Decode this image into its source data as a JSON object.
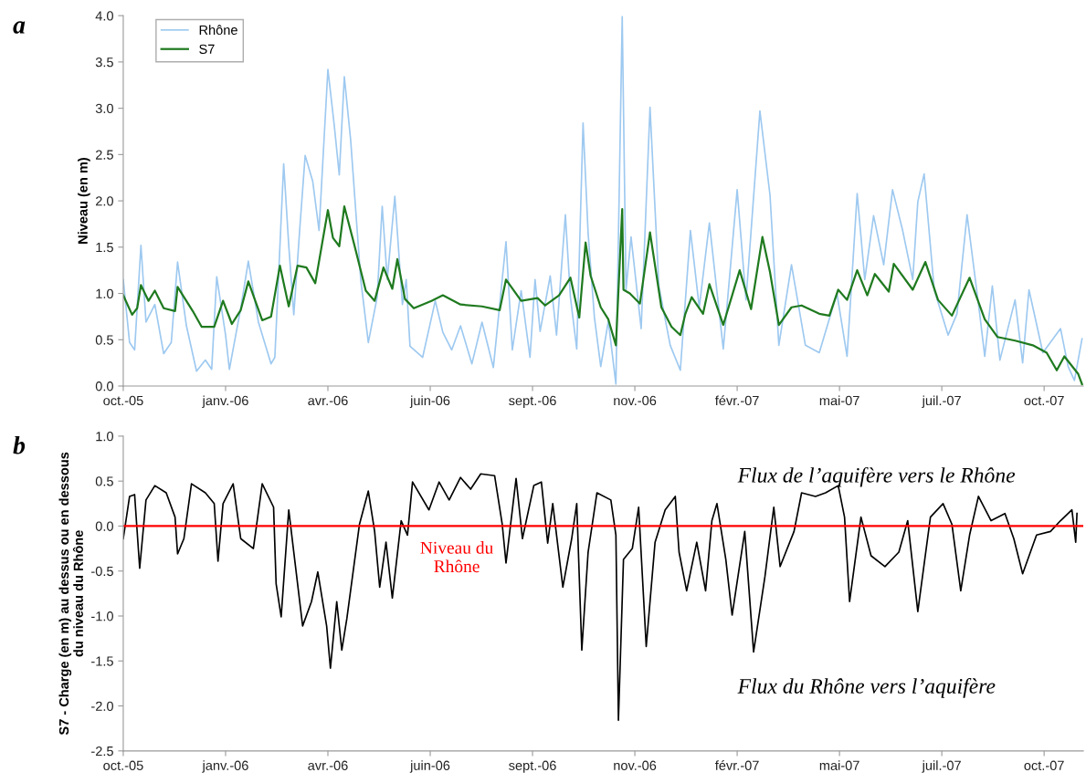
{
  "chart_data": [
    {
      "type": "line",
      "title": "a",
      "ylabel": "Niveau (en m)",
      "legend": "top left",
      "grid": false,
      "xlim": [
        "2005-10-21",
        "2007-11-20"
      ],
      "xticks": [
        {
          "value": "2005-10-21",
          "label": "oct.-05"
        },
        {
          "value": "2006-01-10",
          "label": "janv.-06"
        },
        {
          "value": "2006-04-01",
          "label": "avr.-06"
        },
        {
          "value": "2006-06-21",
          "label": "juin-06"
        },
        {
          "value": "2006-09-10",
          "label": "sept.-06"
        },
        {
          "value": "2006-11-30",
          "label": "nov.-06"
        },
        {
          "value": "2007-02-19",
          "label": "févr.-07"
        },
        {
          "value": "2007-05-11",
          "label": "mai-07"
        },
        {
          "value": "2007-07-31",
          "label": "juil.-07"
        },
        {
          "value": "2007-10-20",
          "label": "oct.-07"
        }
      ],
      "ylim": [
        0,
        4
      ],
      "yticks": [
        {
          "value": 0,
          "label": "0.0"
        },
        {
          "value": 0.5,
          "label": "0.5"
        },
        {
          "value": 1,
          "label": "1.0"
        },
        {
          "value": 1.5,
          "label": "1.5"
        },
        {
          "value": 2,
          "label": "2.0"
        },
        {
          "value": 2.5,
          "label": "2.5"
        },
        {
          "value": 3,
          "label": "3.0"
        },
        {
          "value": 3.5,
          "label": "3.5"
        },
        {
          "value": 4,
          "label": "4.0"
        }
      ],
      "series": [
        {
          "name": "Rhône",
          "color": "#9ec9f0",
          "x": [
            "2005-10-21",
            "2005-10-26",
            "2005-10-30",
            "2005-11-04",
            "2005-11-08",
            "2005-11-15",
            "2005-11-22",
            "2005-11-28",
            "2005-12-03",
            "2005-12-10",
            "2005-12-18",
            "2005-12-25",
            "2005-12-30",
            "2006-01-03",
            "2006-01-10",
            "2006-01-13",
            "2006-01-22",
            "2006-01-28",
            "2006-02-05",
            "2006-02-15",
            "2006-02-18",
            "2006-02-25",
            "2006-03-01",
            "2006-03-05",
            "2006-03-10",
            "2006-03-14",
            "2006-03-20",
            "2006-03-25",
            "2006-04-01",
            "2006-04-06",
            "2006-04-10",
            "2006-04-14",
            "2006-04-19",
            "2006-04-27",
            "2006-05-03",
            "2006-05-10",
            "2006-05-14",
            "2006-05-18",
            "2006-05-24",
            "2006-05-30",
            "2006-06-02",
            "2006-06-05",
            "2006-06-15",
            "2006-06-25",
            "2006-07-01",
            "2006-07-08",
            "2006-07-15",
            "2006-07-24",
            "2006-08-01",
            "2006-08-10",
            "2006-08-20",
            "2006-08-25",
            "2006-09-01",
            "2006-09-08",
            "2006-09-12",
            "2006-09-16",
            "2006-09-24",
            "2006-09-29",
            "2006-10-06",
            "2006-10-10",
            "2006-10-15",
            "2006-10-20",
            "2006-10-24",
            "2006-10-29",
            "2006-11-03",
            "2006-11-09",
            "2006-11-15",
            "2006-11-20",
            "2006-11-23",
            "2006-11-27",
            "2006-12-05",
            "2006-12-12",
            "2006-12-19",
            "2006-12-28",
            "2007-01-05",
            "2007-01-13",
            "2007-01-20",
            "2007-01-28",
            "2007-02-08",
            "2007-02-19",
            "2007-02-26",
            "2007-03-09",
            "2007-03-17",
            "2007-03-24",
            "2007-04-03",
            "2007-04-14",
            "2007-04-25",
            "2007-05-09",
            "2007-05-17",
            "2007-05-25",
            "2007-05-31",
            "2007-06-07",
            "2007-06-15",
            "2007-06-22",
            "2007-06-30",
            "2007-07-08",
            "2007-07-12",
            "2007-07-17",
            "2007-07-25",
            "2007-08-05",
            "2007-08-12",
            "2007-08-20",
            "2007-08-30",
            "2007-09-03",
            "2007-09-09",
            "2007-09-15",
            "2007-09-27",
            "2007-10-03",
            "2007-10-08",
            "2007-10-19",
            "2007-11-02",
            "2007-11-08",
            "2007-11-13",
            "2007-11-19"
          ],
          "values": [
            1.15,
            0.47,
            0.39,
            1.52,
            0.69,
            0.88,
            0.35,
            0.47,
            1.34,
            0.65,
            0.16,
            0.28,
            0.18,
            1.18,
            0.55,
            0.18,
            0.84,
            1.35,
            0.69,
            0.24,
            0.31,
            2.4,
            1.52,
            0.77,
            1.75,
            2.49,
            2.21,
            1.68,
            3.42,
            2.82,
            2.28,
            3.34,
            2.66,
            1.15,
            0.47,
            0.96,
            1.94,
            1.15,
            2.05,
            0.88,
            1.15,
            0.43,
            0.31,
            0.92,
            0.58,
            0.39,
            0.65,
            0.24,
            0.69,
            0.2,
            1.56,
            0.39,
            1.03,
            0.31,
            1.15,
            0.59,
            1.19,
            0.55,
            1.85,
            0.96,
            0.4,
            2.84,
            1.65,
            0.74,
            0.21,
            0.7,
            0.02,
            3.99,
            1.04,
            1.61,
            0.62,
            3.01,
            1.08,
            0.44,
            0.17,
            1.68,
            0.85,
            1.76,
            0.4,
            2.12,
            0.93,
            2.97,
            2.06,
            0.44,
            1.31,
            0.44,
            0.36,
            1.0,
            0.32,
            2.08,
            1.15,
            1.84,
            1.31,
            2.12,
            1.68,
            1.15,
            1.99,
            2.29,
            1.04,
            0.55,
            0.78,
            1.85,
            0.78,
            0.32,
            1.08,
            0.28,
            0.93,
            0.25,
            1.04,
            0.36,
            0.62,
            0.21,
            0.06,
            0.51
          ]
        },
        {
          "name": "S7",
          "color": "#1f7a1f",
          "x": [
            "2005-10-21",
            "2005-10-28",
            "2005-11-01",
            "2005-11-04",
            "2005-11-10",
            "2005-11-15",
            "2005-11-22",
            "2005-12-01",
            "2005-12-03",
            "2005-12-15",
            "2005-12-22",
            "2006-01-01",
            "2006-01-08",
            "2006-01-15",
            "2006-01-22",
            "2006-01-28",
            "2006-02-08",
            "2006-02-15",
            "2006-02-22",
            "2006-03-01",
            "2006-03-08",
            "2006-03-15",
            "2006-03-22",
            "2006-04-01",
            "2006-04-05",
            "2006-04-10",
            "2006-04-14",
            "2006-04-22",
            "2006-05-01",
            "2006-05-08",
            "2006-05-15",
            "2006-05-22",
            "2006-05-26",
            "2006-06-01",
            "2006-06-08",
            "2006-06-22",
            "2006-07-01",
            "2006-07-15",
            "2006-08-01",
            "2006-08-15",
            "2006-08-20",
            "2006-09-01",
            "2006-09-14",
            "2006-09-20",
            "2006-10-01",
            "2006-10-10",
            "2006-10-17",
            "2006-10-22",
            "2006-10-26",
            "2006-11-03",
            "2006-11-09",
            "2006-11-15",
            "2006-11-20",
            "2006-11-21",
            "2006-11-26",
            "2006-12-04",
            "2006-12-12",
            "2006-12-21",
            "2006-12-29",
            "2007-01-05",
            "2007-01-09",
            "2007-01-14",
            "2007-01-23",
            "2007-01-28",
            "2007-02-08",
            "2007-02-21",
            "2007-03-02",
            "2007-03-11",
            "2007-03-17",
            "2007-03-24",
            "2007-04-03",
            "2007-04-11",
            "2007-04-25",
            "2007-05-03",
            "2007-05-10",
            "2007-05-17",
            "2007-05-25",
            "2007-06-02",
            "2007-06-08",
            "2007-06-19",
            "2007-06-23",
            "2007-07-08",
            "2007-07-18",
            "2007-07-28",
            "2007-08-08",
            "2007-08-22",
            "2007-09-03",
            "2007-09-13",
            "2007-09-27",
            "2007-10-11",
            "2007-10-22",
            "2007-10-30",
            "2007-11-05",
            "2007-11-16",
            "2007-11-19"
          ],
          "values": [
            0.98,
            0.77,
            0.84,
            1.09,
            0.92,
            1.03,
            0.84,
            0.81,
            1.07,
            0.81,
            0.64,
            0.64,
            0.92,
            0.67,
            0.82,
            1.13,
            0.71,
            0.75,
            1.3,
            0.86,
            1.3,
            1.28,
            1.11,
            1.9,
            1.6,
            1.51,
            1.94,
            1.52,
            1.03,
            0.92,
            1.28,
            1.05,
            1.37,
            0.94,
            0.84,
            0.92,
            0.98,
            0.88,
            0.86,
            0.82,
            1.15,
            0.92,
            0.95,
            0.87,
            0.98,
            1.17,
            0.74,
            1.55,
            1.19,
            0.85,
            0.72,
            0.44,
            1.91,
            1.04,
            1.0,
            0.89,
            1.66,
            0.85,
            0.64,
            0.55,
            0.78,
            0.96,
            0.78,
            1.1,
            0.66,
            1.25,
            0.83,
            1.61,
            1.23,
            0.66,
            0.85,
            0.87,
            0.78,
            0.76,
            1.04,
            0.93,
            1.25,
            0.98,
            1.21,
            1.02,
            1.32,
            1.04,
            1.34,
            0.93,
            0.76,
            1.17,
            0.72,
            0.53,
            0.49,
            0.44,
            0.36,
            0.17,
            0.32,
            0.13,
            0.02
          ]
        }
      ]
    },
    {
      "type": "line",
      "title": "b",
      "ylabel": "S7 - Charge (en m) au dessus ou en dessous\ndu niveau du Rhône",
      "grid": false,
      "xlim": [
        "2005-10-21",
        "2007-11-20"
      ],
      "xticks": [
        {
          "value": "2005-10-21",
          "label": "oct.-05"
        },
        {
          "value": "2006-01-10",
          "label": "janv.-06"
        },
        {
          "value": "2006-04-01",
          "label": "avr.-06"
        },
        {
          "value": "2006-06-21",
          "label": "juin-06"
        },
        {
          "value": "2006-09-10",
          "label": "sept.-06"
        },
        {
          "value": "2006-11-30",
          "label": "nov.-06"
        },
        {
          "value": "2007-02-19",
          "label": "févr.-07"
        },
        {
          "value": "2007-05-11",
          "label": "mai-07"
        },
        {
          "value": "2007-07-31",
          "label": "juil.-07"
        },
        {
          "value": "2007-10-20",
          "label": "oct.-07"
        }
      ],
      "ylim": [
        -2.5,
        1
      ],
      "yticks": [
        {
          "value": -2.5,
          "label": "-2.5"
        },
        {
          "value": -2,
          "label": "-2.0"
        },
        {
          "value": -1.5,
          "label": "-1.5"
        },
        {
          "value": -1,
          "label": "-1.0"
        },
        {
          "value": -0.5,
          "label": "-0.5"
        },
        {
          "value": 0,
          "label": "0.0"
        },
        {
          "value": 0.5,
          "label": "0.5"
        },
        {
          "value": 1,
          "label": "1.0"
        }
      ],
      "ref_lines": [
        {
          "axis": "y",
          "value": 0,
          "label": "Niveau du\nRhône",
          "color": "#ff0000"
        }
      ],
      "annotations": [
        "Flux de l’aquifère vers le Rhône",
        "Flux du Rhône vers l’aquifère"
      ],
      "series": [
        {
          "color": "#000000",
          "x": [
            "2005-10-21",
            "2005-10-26",
            "2005-10-30",
            "2005-11-03",
            "2005-11-08",
            "2005-11-15",
            "2005-11-24",
            "2005-12-01",
            "2005-12-03",
            "2005-12-08",
            "2005-12-14",
            "2005-12-25",
            "2006-01-01",
            "2006-01-04",
            "2006-01-08",
            "2006-01-16",
            "2006-01-22",
            "2006-02-01",
            "2006-02-08",
            "2006-02-17",
            "2006-02-19",
            "2006-02-23",
            "2006-03-01",
            "2006-03-05",
            "2006-03-12",
            "2006-03-19",
            "2006-03-24",
            "2006-03-31",
            "2006-04-03",
            "2006-04-08",
            "2006-04-12",
            "2006-04-16",
            "2006-04-26",
            "2006-05-03",
            "2006-05-08",
            "2006-05-12",
            "2006-05-17",
            "2006-05-22",
            "2006-05-29",
            "2006-06-03",
            "2006-06-07",
            "2006-06-20",
            "2006-06-28",
            "2006-07-06",
            "2006-07-15",
            "2006-07-23",
            "2006-07-31",
            "2006-08-11",
            "2006-08-17",
            "2006-08-20",
            "2006-08-28",
            "2006-09-02",
            "2006-09-11",
            "2006-09-17",
            "2006-09-22",
            "2006-09-26",
            "2006-10-04",
            "2006-10-11",
            "2006-10-15",
            "2006-10-19",
            "2006-10-24",
            "2006-10-31",
            "2006-11-11",
            "2006-11-15",
            "2006-11-17",
            "2006-11-21",
            "2006-11-28",
            "2006-12-03",
            "2006-12-09",
            "2006-12-16",
            "2006-12-24",
            "2007-01-01",
            "2007-01-04",
            "2007-01-10",
            "2007-01-18",
            "2007-01-25",
            "2007-01-30",
            "2007-02-03",
            "2007-02-10",
            "2007-02-15",
            "2007-02-25",
            "2007-03-04",
            "2007-03-13",
            "2007-03-20",
            "2007-03-25",
            "2007-04-05",
            "2007-04-11",
            "2007-04-22",
            "2007-04-30",
            "2007-05-10",
            "2007-05-15",
            "2007-05-19",
            "2007-05-28",
            "2007-06-05",
            "2007-06-16",
            "2007-06-27",
            "2007-07-04",
            "2007-07-12",
            "2007-07-22",
            "2007-08-01",
            "2007-08-08",
            "2007-08-15",
            "2007-08-22",
            "2007-08-29",
            "2007-09-08",
            "2007-09-19",
            "2007-09-26",
            "2007-10-03",
            "2007-10-14",
            "2007-10-25",
            "2007-11-02",
            "2007-11-11",
            "2007-11-14",
            "2007-11-15"
          ],
          "values": [
            -0.14,
            0.33,
            0.35,
            -0.47,
            0.29,
            0.45,
            0.37,
            0.1,
            -0.31,
            -0.14,
            0.47,
            0.37,
            0.25,
            -0.39,
            0.25,
            0.47,
            -0.14,
            -0.25,
            0.47,
            0.21,
            -0.64,
            -1.01,
            0.18,
            -0.29,
            -1.11,
            -0.84,
            -0.51,
            -1.11,
            -1.58,
            -0.84,
            -1.38,
            -1.03,
            0.02,
            0.39,
            -0.06,
            -0.68,
            -0.18,
            -0.8,
            0.06,
            -0.1,
            0.49,
            0.18,
            0.49,
            0.29,
            0.54,
            0.41,
            0.58,
            0.56,
            0.02,
            -0.41,
            0.53,
            -0.14,
            0.45,
            0.49,
            -0.19,
            0.25,
            -0.68,
            -0.14,
            0.25,
            -1.38,
            -0.29,
            0.37,
            0.29,
            -0.1,
            -2.16,
            -0.37,
            -0.25,
            0.21,
            -1.34,
            -0.18,
            0.18,
            0.33,
            -0.29,
            -0.72,
            -0.18,
            -0.72,
            0.06,
            0.25,
            -0.37,
            -0.99,
            -0.06,
            -1.4,
            -0.56,
            0.21,
            -0.45,
            -0.06,
            0.37,
            0.33,
            0.37,
            0.45,
            0.1,
            -0.84,
            0.1,
            -0.33,
            -0.45,
            -0.29,
            0.06,
            -0.95,
            0.1,
            0.25,
            0.02,
            -0.72,
            -0.1,
            0.33,
            0.06,
            0.14,
            -0.14,
            -0.53,
            -0.1,
            -0.06,
            0.06,
            0.18,
            -0.18,
            0.14
          ]
        }
      ]
    }
  ]
}
